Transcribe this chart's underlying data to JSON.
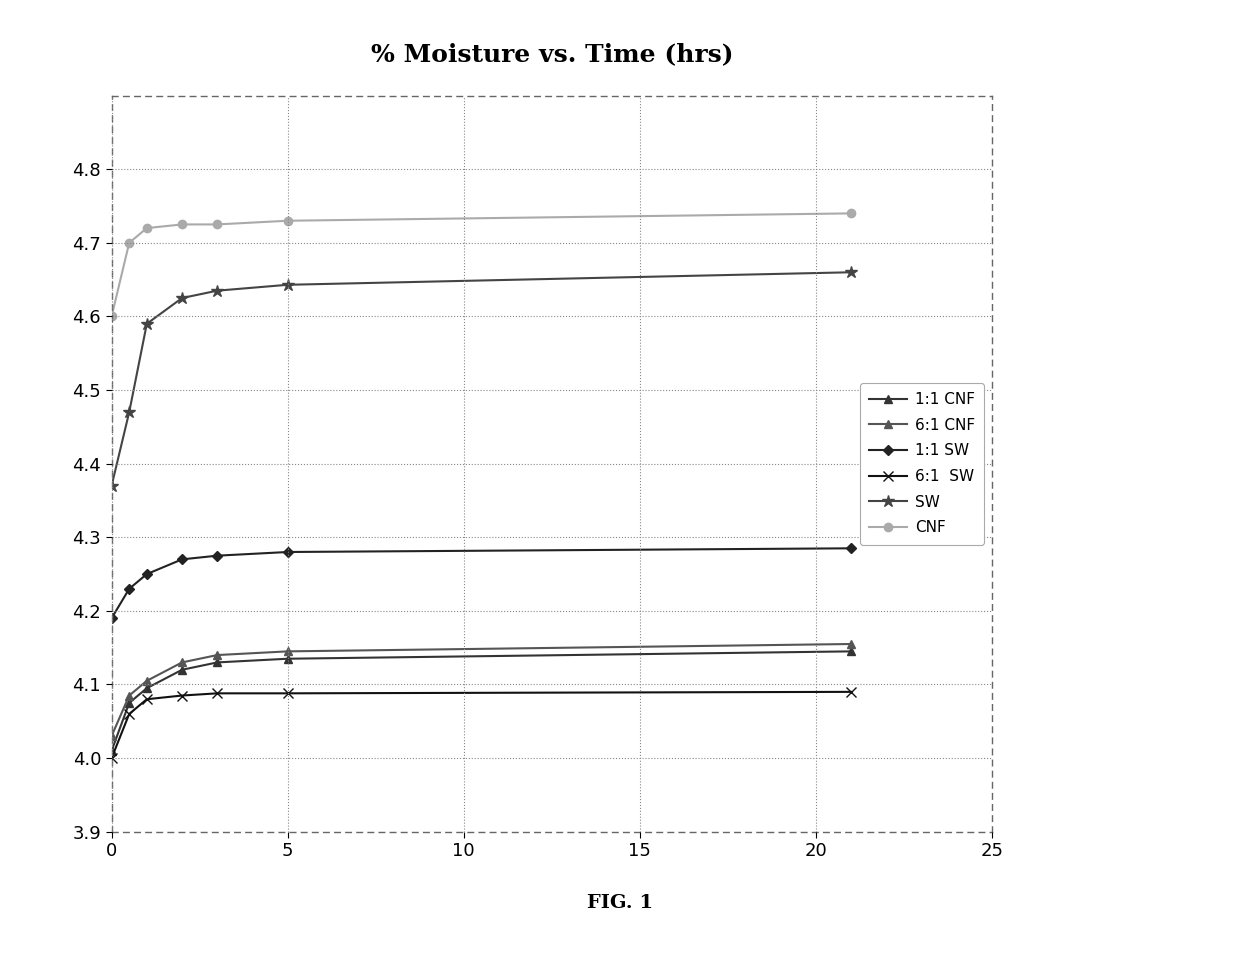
{
  "title": "% Moisture vs. Time (hrs)",
  "fig_caption": "FIG. 1",
  "xlim": [
    0,
    25
  ],
  "ylim": [
    3.9,
    4.9
  ],
  "yticks": [
    3.9,
    4.0,
    4.1,
    4.2,
    4.3,
    4.4,
    4.5,
    4.6,
    4.7,
    4.8
  ],
  "xticks": [
    0,
    5,
    10,
    15,
    20,
    25
  ],
  "background_color": "#ffffff",
  "grid_color": "#888888",
  "series": [
    {
      "label": "1:1 CNF",
      "color": "#333333",
      "marker": "^",
      "x": [
        0,
        0.5,
        1,
        2,
        3,
        5,
        21
      ],
      "y": [
        4.01,
        4.075,
        4.095,
        4.12,
        4.13,
        4.135,
        4.145
      ]
    },
    {
      "label": "6:1 CNF",
      "color": "#555555",
      "marker": "^",
      "x": [
        0,
        0.5,
        1,
        2,
        3,
        5,
        21
      ],
      "y": [
        4.03,
        4.085,
        4.105,
        4.13,
        4.14,
        4.145,
        4.155
      ]
    },
    {
      "label": "1:1 SW",
      "color": "#222222",
      "marker": "D",
      "x": [
        0,
        0.5,
        1,
        2,
        3,
        5,
        21
      ],
      "y": [
        4.19,
        4.23,
        4.25,
        4.27,
        4.275,
        4.28,
        4.285
      ]
    },
    {
      "label": "6:1  SW",
      "color": "#111111",
      "marker": "x",
      "x": [
        0,
        0.5,
        1,
        2,
        3,
        5,
        21
      ],
      "y": [
        4.0,
        4.06,
        4.08,
        4.085,
        4.088,
        4.088,
        4.09
      ]
    },
    {
      "label": "SW",
      "color": "#444444",
      "marker": "*",
      "x": [
        0,
        0.5,
        1,
        2,
        3,
        5,
        21
      ],
      "y": [
        4.37,
        4.47,
        4.59,
        4.625,
        4.635,
        4.643,
        4.66
      ]
    },
    {
      "label": "CNF",
      "color": "#aaaaaa",
      "marker": "o",
      "x": [
        0,
        0.5,
        1,
        2,
        3,
        5,
        21
      ],
      "y": [
        4.6,
        4.7,
        4.72,
        4.725,
        4.725,
        4.73,
        4.74
      ]
    }
  ]
}
